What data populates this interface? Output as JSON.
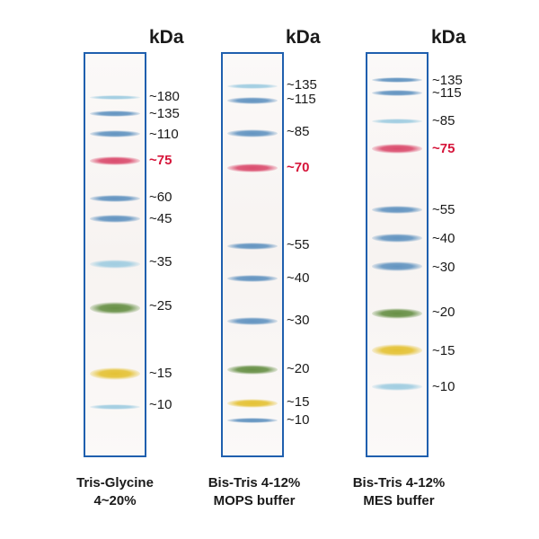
{
  "unit_label": "kDa",
  "colors": {
    "blue": "#5b8fbe",
    "light_blue": "#9ccbe0",
    "red": "#d94366",
    "green": "#5f8a3c",
    "yellow": "#e3bf2a",
    "frame": "#1f5fae",
    "highlight_text": "#d6153a"
  },
  "lanes": [
    {
      "caption": [
        "Tris-Glycine",
        "4~20%"
      ],
      "markers": [
        {
          "label": "~180",
          "color": "light_blue",
          "highlight": false
        },
        {
          "label": "~135",
          "color": "blue",
          "highlight": false
        },
        {
          "label": "~110",
          "color": "blue",
          "highlight": false
        },
        {
          "label": "~75",
          "color": "red",
          "highlight": true
        },
        {
          "label": "~60",
          "color": "blue",
          "highlight": false
        },
        {
          "label": "~45",
          "color": "blue",
          "highlight": false
        },
        {
          "label": "~35",
          "color": "light_blue",
          "highlight": false
        },
        {
          "label": "~25",
          "color": "green",
          "highlight": false
        },
        {
          "label": "~15",
          "color": "yellow",
          "highlight": false
        },
        {
          "label": "~10",
          "color": "light_blue",
          "highlight": false
        }
      ]
    },
    {
      "caption": [
        "Bis-Tris 4-12%",
        "MOPS buffer"
      ],
      "markers": [
        {
          "label": "~135",
          "color": "light_blue",
          "highlight": false
        },
        {
          "label": "~115",
          "color": "blue",
          "highlight": false
        },
        {
          "label": "~85",
          "color": "blue",
          "highlight": false
        },
        {
          "label": "~70",
          "color": "red",
          "highlight": true
        },
        {
          "label": "~55",
          "color": "blue",
          "highlight": false
        },
        {
          "label": "~40",
          "color": "blue",
          "highlight": false
        },
        {
          "label": "~30",
          "color": "blue",
          "highlight": false
        },
        {
          "label": "~20",
          "color": "green",
          "highlight": false
        },
        {
          "label": "~15",
          "color": "yellow",
          "highlight": false
        },
        {
          "label": "~10",
          "color": "blue",
          "highlight": false
        }
      ]
    },
    {
      "caption": [
        "Bis-Tris 4-12%",
        "MES buffer"
      ],
      "markers": [
        {
          "label": "~135",
          "color": "blue",
          "highlight": false
        },
        {
          "label": "~115",
          "color": "blue",
          "highlight": false
        },
        {
          "label": "~85",
          "color": "light_blue",
          "highlight": false
        },
        {
          "label": "~75",
          "color": "red",
          "highlight": true
        },
        {
          "label": "~55",
          "color": "blue",
          "highlight": false
        },
        {
          "label": "~40",
          "color": "blue",
          "highlight": false
        },
        {
          "label": "~30",
          "color": "blue",
          "highlight": false
        },
        {
          "label": "~20",
          "color": "green",
          "highlight": false
        },
        {
          "label": "~15",
          "color": "yellow",
          "highlight": false
        },
        {
          "label": "~10",
          "color": "light_blue",
          "highlight": false
        }
      ]
    }
  ]
}
